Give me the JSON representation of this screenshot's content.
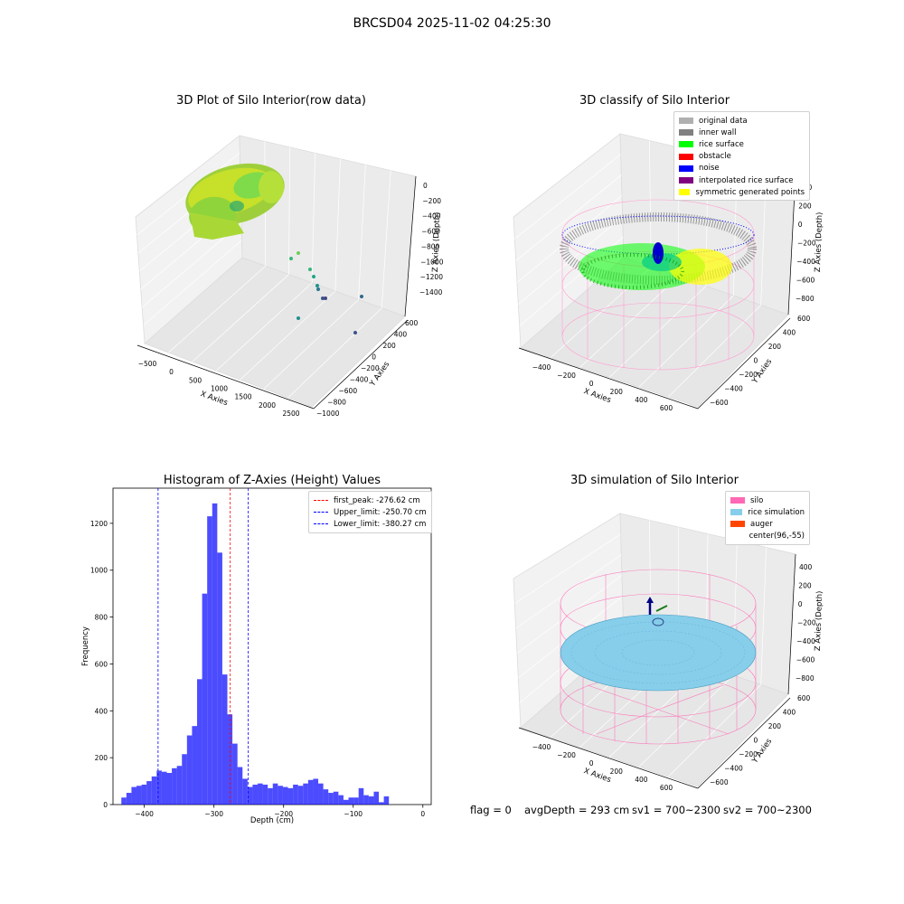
{
  "figure": {
    "title": "BRCSD04 2025-11-02 04:25:30"
  },
  "panels": {
    "raw": {
      "title": "3D Plot of Silo Interior(row data)",
      "xlabel": "X Axies",
      "ylabel": "Y Axies",
      "zlabel": "Z Axies (Depth)",
      "xticks": [
        "−500",
        "0",
        "500",
        "1000",
        "1500",
        "2000",
        "2500"
      ],
      "yticks": [
        "−1000",
        "−800",
        "−600",
        "−400",
        "−200",
        "0",
        "200",
        "400",
        "600"
      ],
      "zticks": [
        "0",
        "−200",
        "−400",
        "−600",
        "−800",
        "−1000",
        "−1200",
        "−1400"
      ]
    },
    "classify": {
      "title": "3D classify of Silo Interior",
      "xlabel": "X Axies",
      "ylabel": "Y Axies",
      "zlabel": "Z Axies (Depth)",
      "xticks": [
        "−400",
        "−200",
        "0",
        "200",
        "400",
        "600"
      ],
      "yticks": [
        "−600",
        "−400",
        "−200",
        "0",
        "200",
        "400",
        "600"
      ],
      "zticks": [
        "400",
        "200",
        "0",
        "−200",
        "−400",
        "−600",
        "−800"
      ],
      "legend": [
        {
          "label": "original data",
          "color": "#b0b0b0"
        },
        {
          "label": "inner wall",
          "color": "#808080"
        },
        {
          "label": "rice surface",
          "color": "#00ff00"
        },
        {
          "label": "obstacle",
          "color": "#ff0000"
        },
        {
          "label": "noise",
          "color": "#0000ff"
        },
        {
          "label": "interpolated rice surface",
          "color": "#800080"
        },
        {
          "label": "symmetric generated points",
          "color": "#ffff00"
        }
      ]
    },
    "simulation": {
      "title": "3D simulation of Silo Interior",
      "xlabel": "X Axies",
      "ylabel": "Y Axies",
      "zlabel": "Z Axies (Depth)",
      "xticks": [
        "−400",
        "−200",
        "0",
        "200",
        "400",
        "600"
      ],
      "yticks": [
        "−600",
        "−400",
        "−200",
        "0",
        "200",
        "400",
        "600"
      ],
      "zticks": [
        "400",
        "200",
        "0",
        "−200",
        "−400",
        "−600",
        "−800"
      ],
      "legend": [
        {
          "label": "silo",
          "color": "#ff69b4"
        },
        {
          "label": "rice simulation",
          "color": "#87ceeb"
        },
        {
          "label": "auger",
          "color": "#ff4500"
        },
        {
          "label": "center(96,-55)",
          "color": "#ffffff"
        }
      ]
    }
  },
  "footer": {
    "flag": "flag = 0",
    "avg": "avgDepth = 293 cm",
    "sv1": "sv1 = 700~2300",
    "sv2": "sv2 = 700~2300"
  },
  "chart_data": {
    "type": "bar",
    "title": "Histogram of Z-Axies (Height) Values",
    "xlabel": "Depth (cm)",
    "ylabel": "Frequency",
    "xlim": [
      -445,
      12
    ],
    "ylim": [
      0,
      1350
    ],
    "xticks": [
      -400,
      -300,
      -200,
      -100,
      0
    ],
    "yticks": [
      0,
      200,
      400,
      600,
      800,
      1000,
      1200
    ],
    "bin_width": 7.25,
    "bin_start": -433,
    "values": [
      30,
      50,
      75,
      80,
      85,
      100,
      120,
      145,
      140,
      135,
      155,
      165,
      215,
      295,
      335,
      535,
      900,
      1230,
      1285,
      1075,
      555,
      385,
      260,
      160,
      110,
      75,
      85,
      90,
      85,
      70,
      90,
      80,
      75,
      70,
      85,
      80,
      90,
      105,
      110,
      90,
      65,
      50,
      55,
      40,
      20,
      30,
      30,
      70,
      40,
      35,
      55,
      10,
      35
    ],
    "bar_color": "#0000ff",
    "lines": [
      {
        "label": "first_peak: -276.62 cm",
        "value": -276.62,
        "color": "#ff0000"
      },
      {
        "label": "Upper_limit: -250.70 cm",
        "value": -250.7,
        "color": "#0000ff"
      },
      {
        "label": "Lower_limit: -380.27 cm",
        "value": -380.27,
        "color": "#0000ff"
      }
    ],
    "legend_position": "top-right"
  }
}
